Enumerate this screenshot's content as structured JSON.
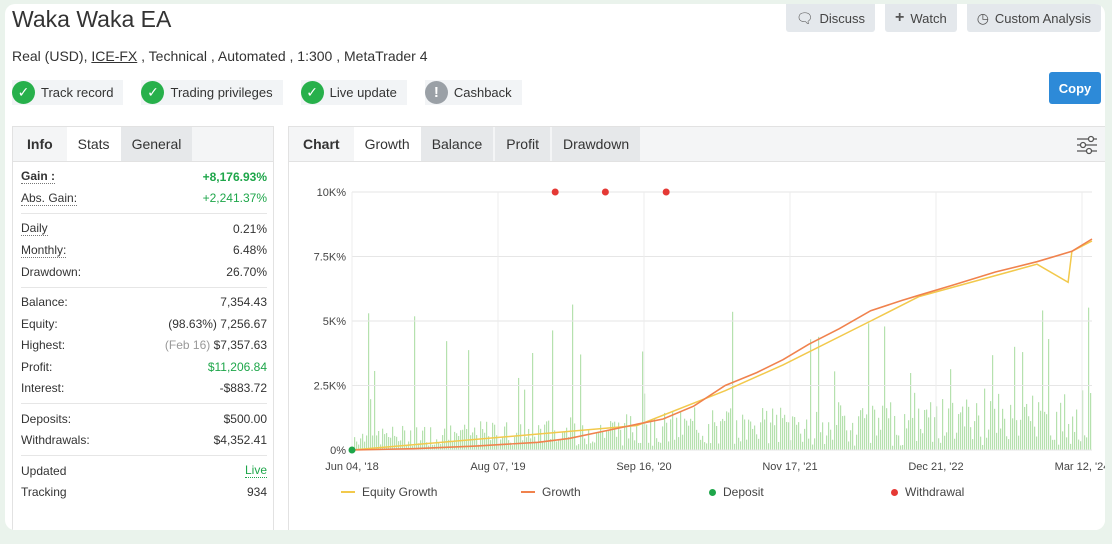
{
  "header": {
    "title": "Waka Waka EA",
    "discuss_label": "Discuss",
    "watch_label": "Watch",
    "custom_analysis_label": "Custom Analysis",
    "copy_label": "Copy"
  },
  "subtitle": {
    "prefix": "Real (USD), ",
    "broker": "ICE-FX",
    "suffix": " , Technical , Automated , 1:300 , MetaTrader 4"
  },
  "badges": [
    {
      "label": "Track record",
      "status": "ok"
    },
    {
      "label": "Trading privileges",
      "status": "ok"
    },
    {
      "label": "Live update",
      "status": "ok"
    },
    {
      "label": "Cashback",
      "status": "info"
    }
  ],
  "left_tabs": {
    "info": "Info",
    "stats": "Stats",
    "general": "General"
  },
  "stats": {
    "gain_label": "Gain :",
    "gain": "+8,176.93%",
    "abs_gain_label": "Abs. Gain:",
    "abs_gain": "+2,241.37%",
    "daily_label": "Daily",
    "daily": "0.21%",
    "monthly_label": "Monthly:",
    "monthly": "6.48%",
    "drawdown_label": "Drawdown:",
    "drawdown": "26.70%",
    "balance_label": "Balance:",
    "balance": "7,354.43",
    "equity_label": "Equity:",
    "equity_pct": "(98.63%)",
    "equity": "7,256.67",
    "highest_label": "Highest:",
    "highest_date": "(Feb 16)",
    "highest": "$7,357.63",
    "profit_label": "Profit:",
    "profit": "$11,206.84",
    "interest_label": "Interest:",
    "interest": "-$883.72",
    "deposits_label": "Deposits:",
    "deposits": "$500.00",
    "withdrawals_label": "Withdrawals:",
    "withdrawals": "$4,352.41",
    "updated_label": "Updated",
    "updated": "Live",
    "tracking_label": "Tracking",
    "tracking": "934"
  },
  "chart_tabs": {
    "chart": "Chart",
    "growth": "Growth",
    "balance": "Balance",
    "profit": "Profit",
    "drawdown": "Drawdown"
  },
  "colors": {
    "equity": "#f2c94c",
    "growth": "#f0824d",
    "deposit": "#1ea64a",
    "withdrawal": "#e53935",
    "bars": "#a8dca0"
  },
  "chart_data": {
    "type": "line",
    "x_tick_labels": [
      "Jun 04, '18",
      "Aug 07, '19",
      "Sep 16, '20",
      "Nov 17, '21",
      "Dec 21, '22",
      "Mar 12, '24"
    ],
    "y_tick_labels": [
      "0%",
      "2.5K%",
      "5K%",
      "7.5K%",
      "10K%"
    ],
    "ylim": [
      0,
      10000
    ],
    "xlim": [
      "2018-06-04",
      "2024-05-10"
    ],
    "grid": true,
    "legend_position": "bottom",
    "series": [
      {
        "name": "Growth",
        "points": [
          [
            "2018-06-04",
            0
          ],
          [
            "2018-12-01",
            50
          ],
          [
            "2019-06-01",
            150
          ],
          [
            "2019-12-01",
            300
          ],
          [
            "2020-03-01",
            450
          ],
          [
            "2020-06-01",
            700
          ],
          [
            "2020-09-16",
            1000
          ],
          [
            "2020-12-01",
            1200
          ],
          [
            "2021-03-01",
            1700
          ],
          [
            "2021-06-01",
            2500
          ],
          [
            "2021-09-01",
            3000
          ],
          [
            "2021-11-17",
            3500
          ],
          [
            "2022-02-01",
            4100
          ],
          [
            "2022-05-01",
            4700
          ],
          [
            "2022-08-01",
            5400
          ],
          [
            "2022-11-01",
            5800
          ],
          [
            "2022-12-21",
            6000
          ],
          [
            "2023-04-01",
            6400
          ],
          [
            "2023-08-01",
            6900
          ],
          [
            "2023-12-01",
            7300
          ],
          [
            "2024-03-12",
            7700
          ],
          [
            "2024-05-10",
            8177
          ]
        ]
      },
      {
        "name": "Equity Growth",
        "points": [
          [
            "2018-06-04",
            0
          ],
          [
            "2020-09-16",
            950
          ],
          [
            "2021-06-01",
            2300
          ],
          [
            "2021-11-17",
            3300
          ],
          [
            "2022-08-01",
            5000
          ],
          [
            "2022-12-21",
            5950
          ],
          [
            "2023-12-01",
            7200
          ],
          [
            "2024-03-01",
            6500
          ],
          [
            "2024-03-12",
            7700
          ],
          [
            "2024-05-10",
            8100
          ]
        ]
      },
      {
        "name": "Deposit",
        "points": [
          [
            "2018-06-04",
            0
          ]
        ]
      },
      {
        "name": "Withdrawal",
        "points": [
          [
            "2020-01-20",
            10000
          ],
          [
            "2020-06-15",
            10000
          ],
          [
            "2020-12-10",
            10000
          ]
        ]
      }
    ]
  }
}
